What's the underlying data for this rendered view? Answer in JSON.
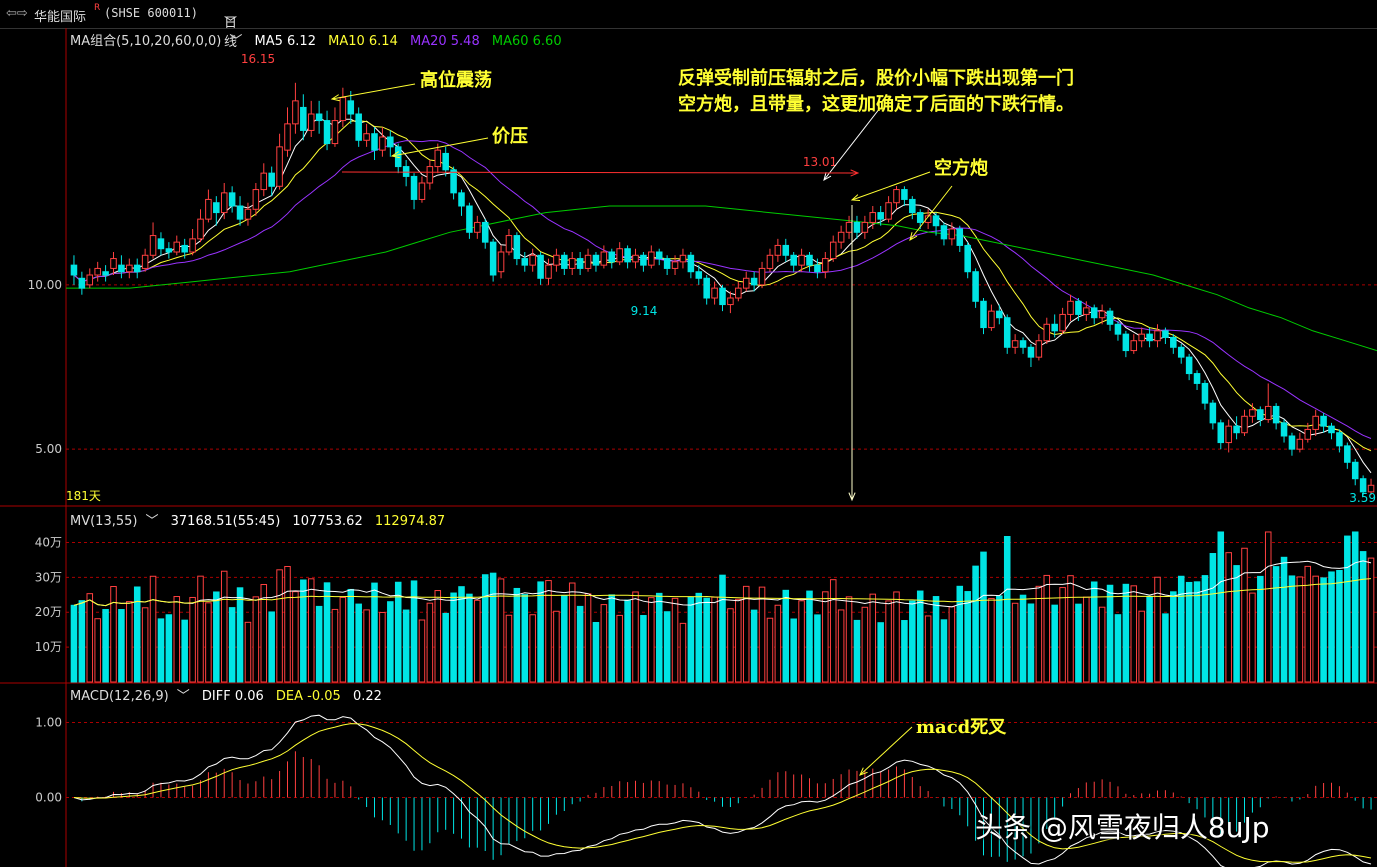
{
  "titlebar": {
    "icon": "arrows-icon",
    "stock_name": "华能国际",
    "badge": "R",
    "code": "(SHSE 600011)",
    "period": "日线"
  },
  "price_header": {
    "indicator": "MA组合(5,10,20,60,0,0)",
    "ma5": "MA5 6.12",
    "ma10": "MA10 6.14",
    "ma20": "MA20 5.48",
    "ma60": "MA60 6.60"
  },
  "volume_header": {
    "indicator": "MV(13,55)",
    "v1": "37168.51(55:45)",
    "v2": "107753.62",
    "v3": "112974.87"
  },
  "macd_header": {
    "indicator": "MACD(12,26,9)",
    "diff": "DIFF 0.06",
    "dea": "DEA -0.05",
    "macd": "0.22"
  },
  "labels": {
    "days": "181天",
    "high": "16.15",
    "mid_high": "13.01",
    "mid_low": "9.14",
    "last_low": "3.59"
  },
  "annotations": {
    "a1": "高位震荡",
    "a2": "价压",
    "a3_line1": "反弹受制前压辐射之后，股价小幅下跌出现第一门",
    "a3_line2": "空方炮，且带量，这更加确定了后面的下跌行情。",
    "a4": "空方炮",
    "a5": "macd死叉"
  },
  "watermark": "头条 @风雪夜归人8uJp",
  "colors": {
    "up": "#ff4040",
    "down": "#00e5e5",
    "ma5": "#ffffff",
    "ma10": "#ffff33",
    "ma20": "#9933ff",
    "ma60": "#00cc00",
    "grid": "#aa0000"
  },
  "chart_data": [
    {
      "type": "candlestick",
      "ylabel_ticks": [
        "10.00",
        "5.00"
      ],
      "yticks": [
        10,
        5
      ],
      "ylim": [
        3.3,
        17.3
      ],
      "candles": [
        [
          10.6,
          10.3,
          10.9,
          10.0
        ],
        [
          10.2,
          9.9,
          10.4,
          9.7
        ],
        [
          10.0,
          10.3,
          10.5,
          9.9
        ],
        [
          10.3,
          10.5,
          10.7,
          10.1
        ],
        [
          10.4,
          10.3,
          10.6,
          10.1
        ],
        [
          10.5,
          10.8,
          11.0,
          10.3
        ],
        [
          10.6,
          10.4,
          10.9,
          10.2
        ],
        [
          10.4,
          10.6,
          10.8,
          10.2
        ],
        [
          10.6,
          10.4,
          10.8,
          10.2
        ],
        [
          10.5,
          10.9,
          11.1,
          10.4
        ],
        [
          10.9,
          11.5,
          11.9,
          10.8
        ],
        [
          11.4,
          11.1,
          11.6,
          10.9
        ],
        [
          11.1,
          11.0,
          11.3,
          10.8
        ],
        [
          11.0,
          11.3,
          11.5,
          10.9
        ],
        [
          11.2,
          11.0,
          11.4,
          10.8
        ],
        [
          11.0,
          11.4,
          11.7,
          10.9
        ],
        [
          11.4,
          12.0,
          12.3,
          11.3
        ],
        [
          12.0,
          12.6,
          12.9,
          11.9
        ],
        [
          12.5,
          12.2,
          12.7,
          11.8
        ],
        [
          12.2,
          12.8,
          13.1,
          12.0
        ],
        [
          12.8,
          12.4,
          13.0,
          12.2
        ],
        [
          12.4,
          12.0,
          12.7,
          11.8
        ],
        [
          12.0,
          12.3,
          12.5,
          11.8
        ],
        [
          12.3,
          12.9,
          13.1,
          12.1
        ],
        [
          12.9,
          13.4,
          13.7,
          12.7
        ],
        [
          13.4,
          13.0,
          13.6,
          12.7
        ],
        [
          13.0,
          14.2,
          14.6,
          12.9
        ],
        [
          14.1,
          14.9,
          15.4,
          13.9
        ],
        [
          14.9,
          15.6,
          16.15,
          14.6
        ],
        [
          15.4,
          14.7,
          15.8,
          14.4
        ],
        [
          14.7,
          15.2,
          15.6,
          14.5
        ],
        [
          15.2,
          15.0,
          15.6,
          14.6
        ],
        [
          15.0,
          14.3,
          15.3,
          14.1
        ],
        [
          14.3,
          15.0,
          15.4,
          14.2
        ],
        [
          15.0,
          15.7,
          16.0,
          14.8
        ],
        [
          15.6,
          15.2,
          15.9,
          14.9
        ],
        [
          15.2,
          14.4,
          15.4,
          14.2
        ],
        [
          14.4,
          14.6,
          14.9,
          14.2
        ],
        [
          14.6,
          14.1,
          14.8,
          13.8
        ],
        [
          14.1,
          14.5,
          14.8,
          13.9
        ],
        [
          14.5,
          14.2,
          14.7,
          13.9
        ],
        [
          14.2,
          13.6,
          14.3,
          13.4
        ],
        [
          13.6,
          13.3,
          13.8,
          13.0
        ],
        [
          13.3,
          12.6,
          13.4,
          12.3
        ],
        [
          12.6,
          13.1,
          13.3,
          12.5
        ],
        [
          13.1,
          13.6,
          13.8,
          12.9
        ],
        [
          13.6,
          14.1,
          14.3,
          13.4
        ],
        [
          14.0,
          13.5,
          14.2,
          13.3
        ],
        [
          13.5,
          12.8,
          13.6,
          12.6
        ],
        [
          12.8,
          12.4,
          12.9,
          12.1
        ],
        [
          12.4,
          11.6,
          12.5,
          11.4
        ],
        [
          11.6,
          11.9,
          12.1,
          11.4
        ],
        [
          11.9,
          11.3,
          12.0,
          11.1
        ],
        [
          11.3,
          10.3,
          11.4,
          10.1
        ],
        [
          10.4,
          11.0,
          11.2,
          10.2
        ],
        [
          11.0,
          11.5,
          11.7,
          10.9
        ],
        [
          11.5,
          10.8,
          11.6,
          10.6
        ],
        [
          10.8,
          10.6,
          11.0,
          10.4
        ],
        [
          10.6,
          10.9,
          11.1,
          10.4
        ],
        [
          10.9,
          10.2,
          11.0,
          10.0
        ],
        [
          10.2,
          10.6,
          10.8,
          10.0
        ],
        [
          10.6,
          10.9,
          11.1,
          10.4
        ],
        [
          10.9,
          10.5,
          11.0,
          10.3
        ],
        [
          10.5,
          10.8,
          11.0,
          10.3
        ],
        [
          10.8,
          10.5,
          11.0,
          10.3
        ],
        [
          10.5,
          10.9,
          11.1,
          10.4
        ],
        [
          10.9,
          10.6,
          11.0,
          10.4
        ],
        [
          10.6,
          11.0,
          11.2,
          10.5
        ],
        [
          11.0,
          10.7,
          11.1,
          10.5
        ],
        [
          10.7,
          11.1,
          11.3,
          10.6
        ],
        [
          11.1,
          10.7,
          11.2,
          10.5
        ],
        [
          10.7,
          10.9,
          11.1,
          10.5
        ],
        [
          10.9,
          10.6,
          11.0,
          10.4
        ],
        [
          10.6,
          11.0,
          11.2,
          10.5
        ],
        [
          11.0,
          10.8,
          11.1,
          10.6
        ],
        [
          10.8,
          10.5,
          10.9,
          10.3
        ],
        [
          10.5,
          10.7,
          10.9,
          10.3
        ],
        [
          10.7,
          10.9,
          11.1,
          10.5
        ],
        [
          10.9,
          10.4,
          11.0,
          10.2
        ],
        [
          10.4,
          10.2,
          10.6,
          10.0
        ],
        [
          10.2,
          9.6,
          10.3,
          9.4
        ],
        [
          9.6,
          9.9,
          10.1,
          9.4
        ],
        [
          9.9,
          9.4,
          10.0,
          9.2
        ],
        [
          9.4,
          9.6,
          9.8,
          9.14
        ],
        [
          9.6,
          9.9,
          10.1,
          9.5
        ],
        [
          9.9,
          10.2,
          10.4,
          9.8
        ],
        [
          10.2,
          10.0,
          10.4,
          9.8
        ],
        [
          10.0,
          10.5,
          10.7,
          9.9
        ],
        [
          10.5,
          10.9,
          11.1,
          10.4
        ],
        [
          10.9,
          11.2,
          11.4,
          10.7
        ],
        [
          11.2,
          10.9,
          11.4,
          10.7
        ],
        [
          10.9,
          10.6,
          11.0,
          10.4
        ],
        [
          10.6,
          10.9,
          11.1,
          10.4
        ],
        [
          10.9,
          10.6,
          11.0,
          10.4
        ],
        [
          10.6,
          10.4,
          10.8,
          10.2
        ],
        [
          10.4,
          10.8,
          11.0,
          10.2
        ],
        [
          10.8,
          11.3,
          11.5,
          10.7
        ],
        [
          11.3,
          11.6,
          11.8,
          11.1
        ],
        [
          11.6,
          11.9,
          12.1,
          11.4
        ],
        [
          11.9,
          11.6,
          12.1,
          11.4
        ],
        [
          11.6,
          11.9,
          12.1,
          11.4
        ],
        [
          11.9,
          12.2,
          12.4,
          11.7
        ],
        [
          12.2,
          12.0,
          12.4,
          11.8
        ],
        [
          12.0,
          12.5,
          12.7,
          11.9
        ],
        [
          12.5,
          12.9,
          13.01,
          12.3
        ],
        [
          12.9,
          12.6,
          13.0,
          12.4
        ],
        [
          12.6,
          12.2,
          12.7,
          12.0
        ],
        [
          12.2,
          11.9,
          12.3,
          11.7
        ],
        [
          11.9,
          12.1,
          12.3,
          11.7
        ],
        [
          12.1,
          11.8,
          12.2,
          11.5
        ],
        [
          11.8,
          11.4,
          11.9,
          11.2
        ],
        [
          11.4,
          11.7,
          11.9,
          11.2
        ],
        [
          11.7,
          11.2,
          11.8,
          11.0
        ],
        [
          11.2,
          10.4,
          11.3,
          10.2
        ],
        [
          10.4,
          9.5,
          10.5,
          9.3
        ],
        [
          9.5,
          8.7,
          9.6,
          8.5
        ],
        [
          8.7,
          9.2,
          9.4,
          8.6
        ],
        [
          9.2,
          9.0,
          9.4,
          8.8
        ],
        [
          9.0,
          8.1,
          9.1,
          7.9
        ],
        [
          8.1,
          8.3,
          8.5,
          7.9
        ],
        [
          8.3,
          8.1,
          8.4,
          7.9
        ],
        [
          8.1,
          7.8,
          8.2,
          7.5
        ],
        [
          7.8,
          8.3,
          8.5,
          7.7
        ],
        [
          8.3,
          8.8,
          9.0,
          8.2
        ],
        [
          8.8,
          8.6,
          9.1,
          8.4
        ],
        [
          8.6,
          9.1,
          9.3,
          8.5
        ],
        [
          9.1,
          9.5,
          9.7,
          8.9
        ],
        [
          9.5,
          9.1,
          9.6,
          8.9
        ],
        [
          9.1,
          9.3,
          9.5,
          8.9
        ],
        [
          9.3,
          9.0,
          9.4,
          8.8
        ],
        [
          9.0,
          9.2,
          9.4,
          8.8
        ],
        [
          9.2,
          8.8,
          9.3,
          8.6
        ],
        [
          8.8,
          8.5,
          8.9,
          8.3
        ],
        [
          8.5,
          8.0,
          8.6,
          7.8
        ],
        [
          8.0,
          8.3,
          8.5,
          7.9
        ],
        [
          8.3,
          8.5,
          8.7,
          8.1
        ],
        [
          8.5,
          8.3,
          8.7,
          8.1
        ],
        [
          8.3,
          8.6,
          8.8,
          8.1
        ],
        [
          8.6,
          8.4,
          8.7,
          8.2
        ],
        [
          8.4,
          8.1,
          8.5,
          7.9
        ],
        [
          8.1,
          7.8,
          8.2,
          7.6
        ],
        [
          7.8,
          7.3,
          7.9,
          7.1
        ],
        [
          7.3,
          7.0,
          7.4,
          6.8
        ],
        [
          7.0,
          6.4,
          7.1,
          6.2
        ],
        [
          6.4,
          5.8,
          6.5,
          5.6
        ],
        [
          5.8,
          5.2,
          5.9,
          5.0
        ],
        [
          5.2,
          5.7,
          5.9,
          4.9
        ],
        [
          5.7,
          5.5,
          6.0,
          5.3
        ],
        [
          5.5,
          6.0,
          6.2,
          5.4
        ],
        [
          6.0,
          6.2,
          6.4,
          5.8
        ],
        [
          6.2,
          5.9,
          6.3,
          5.7
        ],
        [
          5.9,
          6.3,
          7.0,
          5.8
        ],
        [
          6.3,
          5.8,
          6.4,
          5.6
        ],
        [
          5.8,
          5.4,
          5.9,
          5.2
        ],
        [
          5.4,
          5.0,
          5.5,
          4.8
        ],
        [
          5.0,
          5.3,
          5.5,
          4.9
        ],
        [
          5.3,
          5.6,
          5.8,
          5.2
        ],
        [
          5.6,
          6.0,
          6.2,
          5.4
        ],
        [
          6.0,
          5.7,
          6.1,
          5.5
        ],
        [
          5.7,
          5.5,
          5.8,
          5.3
        ],
        [
          5.5,
          5.1,
          5.6,
          4.9
        ],
        [
          5.1,
          4.6,
          5.2,
          4.4
        ],
        [
          4.6,
          4.1,
          4.7,
          3.9
        ],
        [
          4.1,
          3.7,
          4.2,
          3.59
        ],
        [
          3.7,
          3.9,
          4.1,
          3.6
        ]
      ],
      "ma60_points": [
        9.9,
        9.9,
        9.9,
        10.0,
        10.1,
        10.2,
        10.3,
        10.4,
        10.6,
        10.8,
        11.0,
        11.3,
        11.6,
        11.8,
        12.0,
        12.2,
        12.3,
        12.4,
        12.4,
        12.4,
        12.4,
        12.3,
        12.2,
        12.1,
        12.0,
        11.9,
        11.8,
        11.6,
        11.5,
        11.3,
        11.1,
        10.9,
        10.7,
        10.5,
        10.3,
        10.0,
        9.7,
        9.3,
        9.0,
        8.6,
        8.3,
        8.0
      ],
      "series_names": [
        "MA5",
        "MA10",
        "MA20",
        "MA60"
      ]
    },
    {
      "type": "bar",
      "name": "volume",
      "ylabel_ticks": [
        "40万",
        "30万",
        "20万",
        "10万"
      ],
      "yticks": [
        40,
        30,
        20,
        10
      ],
      "ylim": [
        0,
        45
      ]
    },
    {
      "type": "bar",
      "name": "macd",
      "ylabel_ticks": [
        "1.00",
        "0.00"
      ],
      "yticks": [
        1,
        0
      ],
      "ylim": [
        -0.9,
        1.3
      ]
    }
  ]
}
